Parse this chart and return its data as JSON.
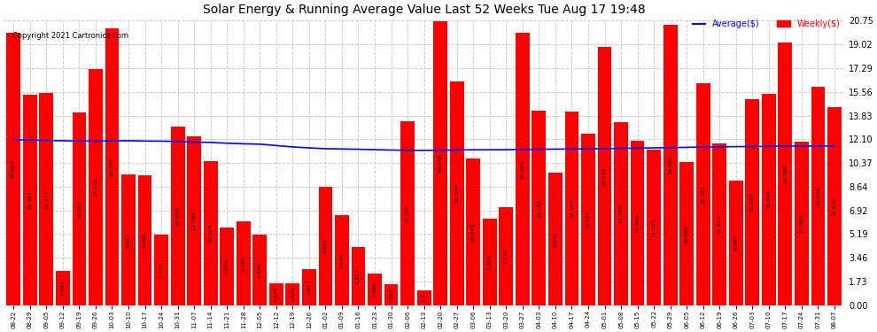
{
  "title": "Solar Energy & Running Average Value Last 52 Weeks Tue Aug 17 19:48",
  "copyright": "Copyright 2021 Cartronics.com",
  "bar_color": "#ff0000",
  "avg_line_color": "#0000ff",
  "background_color": "#ffffff",
  "grid_color": "#cccccc",
  "yticks": [
    0.0,
    1.73,
    3.46,
    5.19,
    6.92,
    8.64,
    10.37,
    12.1,
    13.83,
    15.56,
    17.29,
    19.02,
    20.75
  ],
  "weekly_values": [
    19.864,
    15.383,
    15.477,
    2.491,
    14.057,
    17.218,
    20.195,
    9.517,
    9.486,
    5.178,
    13.03,
    12.304,
    10.504,
    5.674,
    6.101,
    5.143,
    1.579,
    1.623,
    2.617,
    8.661,
    6.594,
    4.227,
    2.28,
    1.551,
    13.39,
    1.1,
    20.745,
    16.34,
    10.695,
    6.304,
    7.172,
    19.901,
    14.181,
    9.651,
    14.143,
    12.527,
    18.846,
    13.366,
    11.985,
    11.341,
    20.468,
    10.465,
    16.181,
    11.814,
    9.097,
    15.022,
    15.404,
    19.189,
    11.904,
    15.946,
    14.47
  ],
  "avg_values": [
    12.1,
    12.05,
    12.02,
    12.0,
    11.98,
    11.97,
    11.99,
    12.0,
    11.98,
    11.97,
    11.95,
    11.9,
    11.88,
    11.82,
    11.78,
    11.75,
    11.65,
    11.55,
    11.48,
    11.42,
    11.4,
    11.38,
    11.35,
    11.32,
    11.3,
    11.3,
    11.31,
    11.33,
    11.34,
    11.34,
    11.35,
    11.37,
    11.38,
    11.39,
    11.4,
    11.41,
    11.42,
    11.44,
    11.46,
    11.48,
    11.5,
    11.52,
    11.54,
    11.56,
    11.57,
    11.58,
    11.59,
    11.6,
    11.61,
    11.61,
    11.62
  ],
  "x_labels": [
    "08-22",
    "08-29",
    "09-05",
    "09-12",
    "09-19",
    "09-26",
    "10-03",
    "10-10",
    "10-17",
    "10-24",
    "10-31",
    "11-07",
    "11-14",
    "11-21",
    "11-28",
    "12-05",
    "12-12",
    "12-19",
    "12-26",
    "01-02",
    "01-09",
    "01-16",
    "01-23",
    "01-30",
    "02-06",
    "02-13",
    "02-20",
    "02-27",
    "03-06",
    "03-13",
    "03-20",
    "03-27",
    "04-03",
    "04-10",
    "04-17",
    "04-24",
    "05-01",
    "05-08",
    "05-15",
    "05-22",
    "05-29",
    "06-05",
    "06-12",
    "06-19",
    "06-26",
    "07-03",
    "07-10",
    "07-17",
    "07-24",
    "07-31",
    "08-07"
  ],
  "bar_value_labels": [
    "19.864",
    "15.383",
    "15.477",
    "2.491",
    "14.057",
    "17.218",
    "20.195",
    "9.517",
    "9.486",
    "5.178",
    "13.030",
    "12.304",
    "10.504",
    "5.674",
    "6.101",
    "5.143",
    "1.579",
    "1.623",
    "2.617",
    "8.661",
    "6.594",
    "4.227",
    "2.280",
    "1.551",
    "13.390",
    "1.1",
    "20.745",
    "16.340",
    "10.695",
    "6.304",
    "7.172",
    "19.901",
    "14.181",
    "9.651",
    "14.143",
    "12.527",
    "18.846",
    "13.366",
    "11.985",
    "11.341",
    "20.468",
    "10.465",
    "16.181",
    "11.814",
    "9.097",
    "15.022",
    "15.404",
    "19.189",
    "11.904",
    "15.946",
    "14.470"
  ],
  "legend_avg_label": "Average($)",
  "legend_weekly_label": "Weekly($)",
  "ymax": 20.75,
  "ymin": 0.0
}
